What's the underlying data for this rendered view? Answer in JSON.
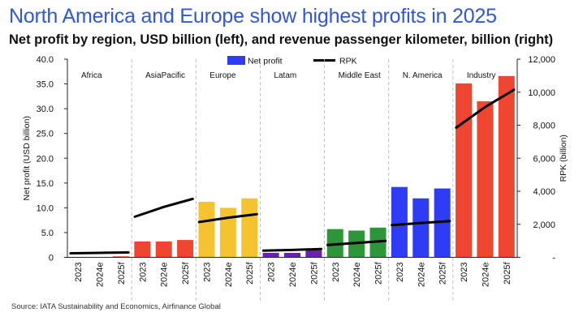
{
  "title": "North America and Europe show highest profits in 2025",
  "subtitle": "Net profit by region, USD billion (left), and revenue passenger kilometer, billion (right)",
  "source": "Source: IATA Sustainability and Economics, Airfinance Global",
  "chart_data": {
    "type": "bar",
    "ylabel": "Net profit (USD billion)",
    "ylabel_right": "RPK (billion)",
    "ylim": [
      0,
      40
    ],
    "ylim_right": [
      0,
      12000
    ],
    "yticks": [
      "0",
      "5.0",
      "10.0",
      "15.0",
      "20.0",
      "25.0",
      "30.0",
      "35.0",
      "40.0"
    ],
    "yticks_right": [
      "-",
      "2,000",
      "4,000",
      "6,000",
      "8,000",
      "10,000",
      "12,000"
    ],
    "legend": {
      "position": "top-center",
      "entries": [
        {
          "label": "Net profit",
          "kind": "bar",
          "color": "#2e3df5"
        },
        {
          "label": "RPK",
          "kind": "line",
          "color": "#000000"
        }
      ]
    },
    "grid": false,
    "groups": [
      {
        "name": "Africa",
        "color": "#ef4531",
        "categories": [
          "2023",
          "2024e",
          "2025f"
        ],
        "net_profit": [
          -0.1,
          0.0,
          0.2
        ],
        "rpk": [
          250,
          270,
          290
        ]
      },
      {
        "name": "AsiaPacific",
        "color": "#ef4531",
        "categories": [
          "2023",
          "2024e",
          "2025f"
        ],
        "net_profit": [
          3.2,
          3.2,
          3.5
        ],
        "rpk": [
          2600,
          3050,
          3400
        ]
      },
      {
        "name": "Europe",
        "color": "#f5c330",
        "categories": [
          "2023",
          "2024e",
          "2025f"
        ],
        "net_profit": [
          11.2,
          10.0,
          11.9
        ],
        "rpk": [
          2200,
          2400,
          2550
        ]
      },
      {
        "name": "Latam",
        "color": "#6a1fad",
        "categories": [
          "2023",
          "2024e",
          "2025f"
        ],
        "net_profit": [
          0.9,
          0.9,
          1.4
        ],
        "rpk": [
          420,
          450,
          490
        ]
      },
      {
        "name": "Middle East",
        "color": "#2c9638",
        "categories": [
          "2023",
          "2024e",
          "2025f"
        ],
        "net_profit": [
          5.7,
          5.4,
          6.0
        ],
        "rpk": [
          780,
          870,
          960
        ]
      },
      {
        "name": "N. America",
        "color": "#2e3df5",
        "categories": [
          "2023",
          "2024e",
          "2025f"
        ],
        "net_profit": [
          14.2,
          11.9,
          13.9
        ],
        "rpk": [
          1980,
          2080,
          2160
        ]
      },
      {
        "name": "Industry",
        "color": "#ef4531",
        "categories": [
          "2023",
          "2024e",
          "2025f"
        ],
        "net_profit": [
          35.1,
          31.5,
          36.6
        ],
        "rpk": [
          8150,
          9100,
          9850
        ]
      }
    ]
  }
}
